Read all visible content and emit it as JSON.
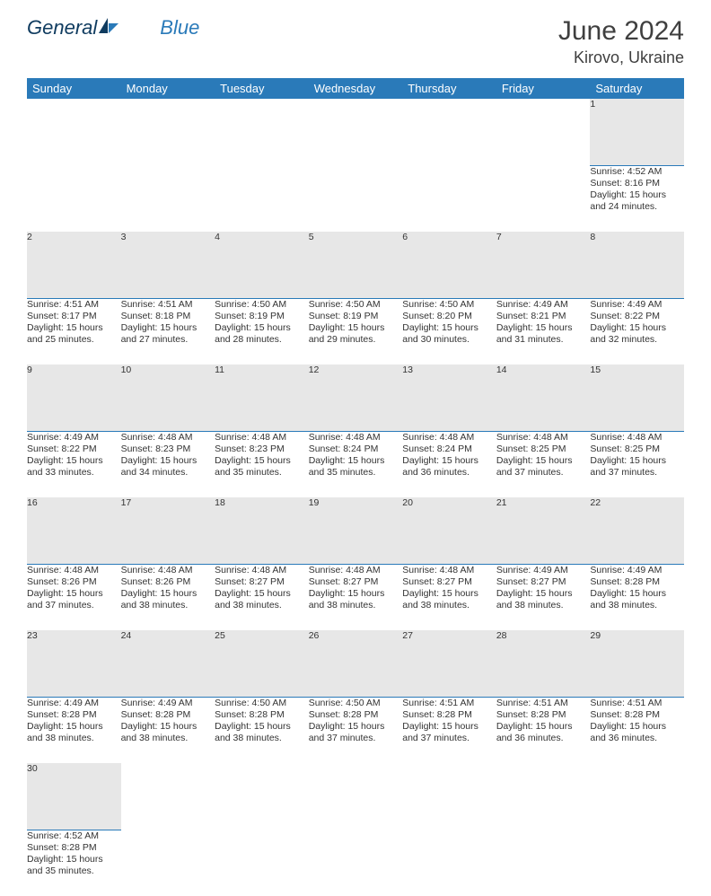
{
  "logo": {
    "part1": "General",
    "part2": "Blue"
  },
  "title": "June 2024",
  "location": "Kirovo, Ukraine",
  "colors": {
    "header_bg": "#2a7ab9",
    "header_fg": "#ffffff",
    "daynum_bg": "#e7e7e7",
    "cell_border": "#2a7ab9",
    "text": "#333333",
    "title_color": "#3f3f3f"
  },
  "weekdays": [
    "Sunday",
    "Monday",
    "Tuesday",
    "Wednesday",
    "Thursday",
    "Friday",
    "Saturday"
  ],
  "weeks": [
    {
      "nums": [
        "",
        "",
        "",
        "",
        "",
        "",
        "1"
      ],
      "cells": [
        "",
        "",
        "",
        "",
        "",
        "",
        "Sunrise: 4:52 AM\nSunset: 8:16 PM\nDaylight: 15 hours and 24 minutes."
      ]
    },
    {
      "nums": [
        "2",
        "3",
        "4",
        "5",
        "6",
        "7",
        "8"
      ],
      "cells": [
        "Sunrise: 4:51 AM\nSunset: 8:17 PM\nDaylight: 15 hours and 25 minutes.",
        "Sunrise: 4:51 AM\nSunset: 8:18 PM\nDaylight: 15 hours and 27 minutes.",
        "Sunrise: 4:50 AM\nSunset: 8:19 PM\nDaylight: 15 hours and 28 minutes.",
        "Sunrise: 4:50 AM\nSunset: 8:19 PM\nDaylight: 15 hours and 29 minutes.",
        "Sunrise: 4:50 AM\nSunset: 8:20 PM\nDaylight: 15 hours and 30 minutes.",
        "Sunrise: 4:49 AM\nSunset: 8:21 PM\nDaylight: 15 hours and 31 minutes.",
        "Sunrise: 4:49 AM\nSunset: 8:22 PM\nDaylight: 15 hours and 32 minutes."
      ]
    },
    {
      "nums": [
        "9",
        "10",
        "11",
        "12",
        "13",
        "14",
        "15"
      ],
      "cells": [
        "Sunrise: 4:49 AM\nSunset: 8:22 PM\nDaylight: 15 hours and 33 minutes.",
        "Sunrise: 4:48 AM\nSunset: 8:23 PM\nDaylight: 15 hours and 34 minutes.",
        "Sunrise: 4:48 AM\nSunset: 8:23 PM\nDaylight: 15 hours and 35 minutes.",
        "Sunrise: 4:48 AM\nSunset: 8:24 PM\nDaylight: 15 hours and 35 minutes.",
        "Sunrise: 4:48 AM\nSunset: 8:24 PM\nDaylight: 15 hours and 36 minutes.",
        "Sunrise: 4:48 AM\nSunset: 8:25 PM\nDaylight: 15 hours and 37 minutes.",
        "Sunrise: 4:48 AM\nSunset: 8:25 PM\nDaylight: 15 hours and 37 minutes."
      ]
    },
    {
      "nums": [
        "16",
        "17",
        "18",
        "19",
        "20",
        "21",
        "22"
      ],
      "cells": [
        "Sunrise: 4:48 AM\nSunset: 8:26 PM\nDaylight: 15 hours and 37 minutes.",
        "Sunrise: 4:48 AM\nSunset: 8:26 PM\nDaylight: 15 hours and 38 minutes.",
        "Sunrise: 4:48 AM\nSunset: 8:27 PM\nDaylight: 15 hours and 38 minutes.",
        "Sunrise: 4:48 AM\nSunset: 8:27 PM\nDaylight: 15 hours and 38 minutes.",
        "Sunrise: 4:48 AM\nSunset: 8:27 PM\nDaylight: 15 hours and 38 minutes.",
        "Sunrise: 4:49 AM\nSunset: 8:27 PM\nDaylight: 15 hours and 38 minutes.",
        "Sunrise: 4:49 AM\nSunset: 8:28 PM\nDaylight: 15 hours and 38 minutes."
      ]
    },
    {
      "nums": [
        "23",
        "24",
        "25",
        "26",
        "27",
        "28",
        "29"
      ],
      "cells": [
        "Sunrise: 4:49 AM\nSunset: 8:28 PM\nDaylight: 15 hours and 38 minutes.",
        "Sunrise: 4:49 AM\nSunset: 8:28 PM\nDaylight: 15 hours and 38 minutes.",
        "Sunrise: 4:50 AM\nSunset: 8:28 PM\nDaylight: 15 hours and 38 minutes.",
        "Sunrise: 4:50 AM\nSunset: 8:28 PM\nDaylight: 15 hours and 37 minutes.",
        "Sunrise: 4:51 AM\nSunset: 8:28 PM\nDaylight: 15 hours and 37 minutes.",
        "Sunrise: 4:51 AM\nSunset: 8:28 PM\nDaylight: 15 hours and 36 minutes.",
        "Sunrise: 4:51 AM\nSunset: 8:28 PM\nDaylight: 15 hours and 36 minutes."
      ]
    },
    {
      "nums": [
        "30",
        "",
        "",
        "",
        "",
        "",
        ""
      ],
      "cells": [
        "Sunrise: 4:52 AM\nSunset: 8:28 PM\nDaylight: 15 hours and 35 minutes.",
        "",
        "",
        "",
        "",
        "",
        ""
      ]
    }
  ]
}
